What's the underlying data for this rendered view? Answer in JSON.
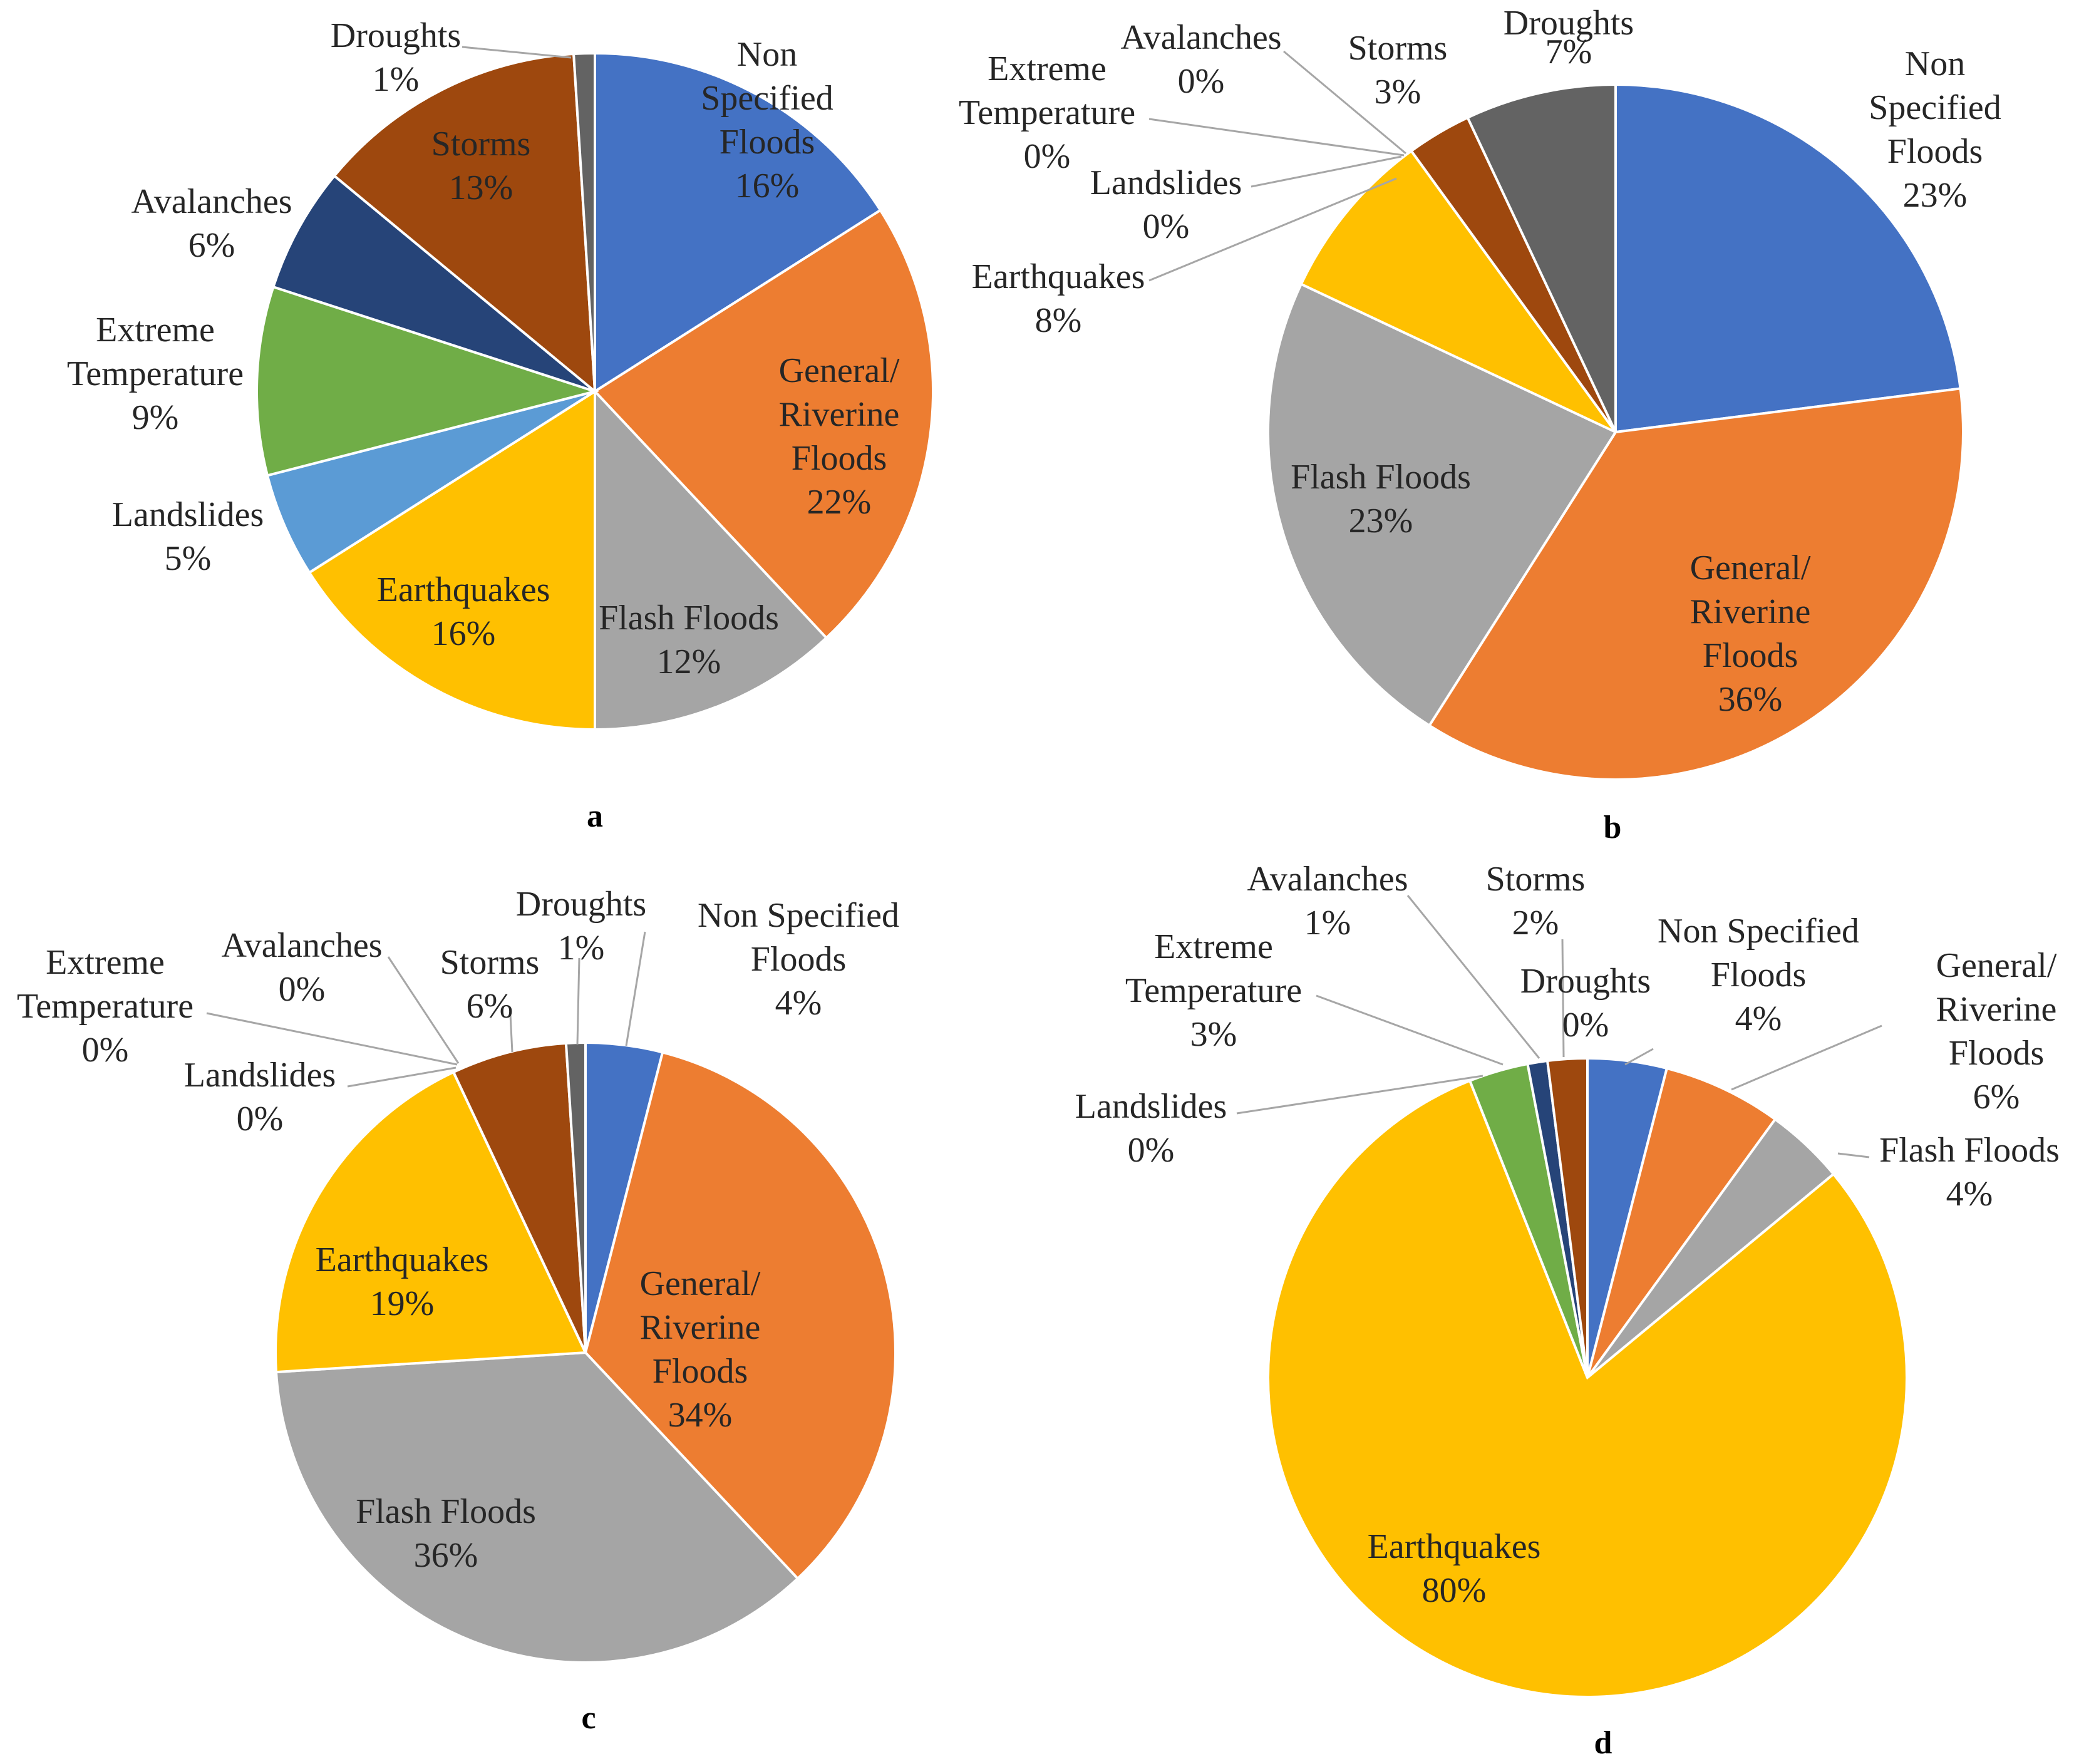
{
  "figure_description_panels": [
    "a",
    "b",
    "c",
    "d"
  ],
  "colors": {
    "Non Specified Floods": "#4472c4",
    "General/ Riverine Floods": "#ed7d31",
    "Flash Floods": "#a5a5a5",
    "Earthquakes": "#ffc000",
    "Landslides": "#5b9bd5",
    "Extreme Temperature": "#70ad47",
    "Avalanches": "#264478",
    "Storms": "#9e480e",
    "Droughts": "#636363"
  },
  "chart_data": [
    {
      "type": "pie",
      "panel": "a",
      "title": "a",
      "categories": [
        "Non Specified Floods",
        "General/ Riverine Floods",
        "Flash Floods",
        "Earthquakes",
        "Landslides",
        "Extreme Temperature",
        "Avalanches",
        "Storms",
        "Droughts"
      ],
      "values": [
        16,
        22,
        12,
        16,
        5,
        9,
        6,
        13,
        1
      ],
      "labels": [
        {
          "lines": [
            "Non",
            "Specified",
            "Floods"
          ],
          "pct": "16%"
        },
        {
          "lines": [
            "General/",
            "Riverine",
            "Floods"
          ],
          "pct": "22%"
        },
        {
          "lines": [
            "Flash Floods"
          ],
          "pct": "12%"
        },
        {
          "lines": [
            "Earthquakes"
          ],
          "pct": "16%"
        },
        {
          "lines": [
            "Landslides"
          ],
          "pct": "5%"
        },
        {
          "lines": [
            "Extreme",
            "Temperature"
          ],
          "pct": "9%"
        },
        {
          "lines": [
            "Avalanches"
          ],
          "pct": "6%"
        },
        {
          "lines": [
            "Storms"
          ],
          "pct": "13%"
        },
        {
          "lines": [
            "Droughts"
          ],
          "pct": "1%"
        }
      ]
    },
    {
      "type": "pie",
      "panel": "b",
      "title": "b",
      "categories": [
        "Non Specified Floods",
        "General/ Riverine Floods",
        "Flash Floods",
        "Earthquakes",
        "Landslides",
        "Extreme Temperature",
        "Avalanches",
        "Storms",
        "Droughts"
      ],
      "values": [
        23,
        36,
        23,
        8,
        0,
        0,
        0,
        3,
        7
      ],
      "labels": [
        {
          "lines": [
            "Non",
            "Specified",
            "Floods"
          ],
          "pct": "23%"
        },
        {
          "lines": [
            "General/",
            "Riverine",
            "Floods"
          ],
          "pct": "36%"
        },
        {
          "lines": [
            "Flash Floods"
          ],
          "pct": "23%"
        },
        {
          "lines": [
            "Earthquakes"
          ],
          "pct": "8%"
        },
        {
          "lines": [
            "Landslides"
          ],
          "pct": "0%"
        },
        {
          "lines": [
            "Extreme",
            "Temperature"
          ],
          "pct": "0%"
        },
        {
          "lines": [
            "Avalanches"
          ],
          "pct": "0%"
        },
        {
          "lines": [
            "Storms"
          ],
          "pct": "3%"
        },
        {
          "lines": [
            "Droughts"
          ],
          "pct": "7%"
        }
      ]
    },
    {
      "type": "pie",
      "panel": "c",
      "title": "c",
      "categories": [
        "Non Specified Floods",
        "General/ Riverine Floods",
        "Flash Floods",
        "Earthquakes",
        "Landslides",
        "Extreme Temperature",
        "Avalanches",
        "Storms",
        "Droughts"
      ],
      "values": [
        4,
        34,
        36,
        19,
        0,
        0,
        0,
        6,
        1
      ],
      "labels": [
        {
          "lines": [
            "Non Specified",
            "Floods"
          ],
          "pct": "4%"
        },
        {
          "lines": [
            "General/",
            "Riverine",
            "Floods"
          ],
          "pct": "34%"
        },
        {
          "lines": [
            "Flash Floods"
          ],
          "pct": "36%"
        },
        {
          "lines": [
            "Earthquakes"
          ],
          "pct": "19%"
        },
        {
          "lines": [
            "Landslides"
          ],
          "pct": "0%"
        },
        {
          "lines": [
            "Extreme",
            "Temperature"
          ],
          "pct": "0%"
        },
        {
          "lines": [
            "Avalanches"
          ],
          "pct": "0%"
        },
        {
          "lines": [
            "Storms"
          ],
          "pct": "6%"
        },
        {
          "lines": [
            "Droughts"
          ],
          "pct": "1%"
        }
      ]
    },
    {
      "type": "pie",
      "panel": "d",
      "title": "d",
      "categories": [
        "Non Specified Floods",
        "General/ Riverine Floods",
        "Flash Floods",
        "Earthquakes",
        "Landslides",
        "Extreme Temperature",
        "Avalanches",
        "Storms",
        "Droughts"
      ],
      "values": [
        4,
        6,
        4,
        80,
        0,
        3,
        1,
        2,
        0
      ],
      "labels": [
        {
          "lines": [
            "Non Specified",
            "Floods"
          ],
          "pct": "4%"
        },
        {
          "lines": [
            "General/",
            "Riverine",
            "Floods"
          ],
          "pct": "6%"
        },
        {
          "lines": [
            "Flash Floods"
          ],
          "pct": "4%"
        },
        {
          "lines": [
            "Earthquakes"
          ],
          "pct": "80%"
        },
        {
          "lines": [
            "Landslides"
          ],
          "pct": "0%"
        },
        {
          "lines": [
            "Extreme",
            "Temperature"
          ],
          "pct": "3%"
        },
        {
          "lines": [
            "Avalanches"
          ],
          "pct": "1%"
        },
        {
          "lines": [
            "Storms"
          ],
          "pct": "2%"
        },
        {
          "lines": [
            "Droughts"
          ],
          "pct": "0%"
        }
      ]
    }
  ]
}
